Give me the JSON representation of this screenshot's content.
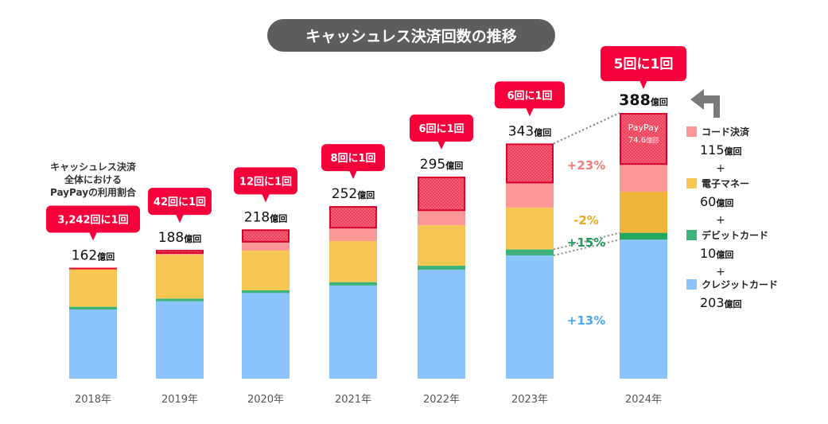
{
  "chart_data": {
    "type": "bar",
    "stacked": true,
    "title": "キャッシュレス決済回数の推移",
    "categories": [
      "2018年",
      "2019年",
      "2020年",
      "2021年",
      "2022年",
      "2023年",
      "2024年"
    ],
    "unit": "億回",
    "series": [
      {
        "name": "クレジットカード",
        "key": "credit",
        "color": "#8ac4fb",
        "values": [
          101,
          113,
          125,
          136,
          159,
          180,
          203
        ]
      },
      {
        "name": "デビットカード",
        "key": "debit",
        "color": "#3db37a",
        "values": [
          4,
          4,
          4,
          5,
          6,
          8.7,
          10
        ]
      },
      {
        "name": "電子マネー",
        "key": "emoney",
        "color": "#f8c653",
        "values": [
          56,
          64,
          58,
          60,
          59,
          61.2,
          60
        ]
      },
      {
        "name": "コード決済",
        "key": "code",
        "color": "#fb9797",
        "values": [
          1,
          7,
          31,
          51,
          71,
          93.5,
          115
        ]
      }
    ],
    "paypay_values": [
      0.05,
      4.5,
      18,
      31.5,
      49,
      57,
      74.6
    ],
    "paypay_color": "#ec3a55",
    "totals": [
      "162",
      "188",
      "218",
      "252",
      "295",
      "343",
      "388"
    ],
    "ratios": [
      "3,242回に1回",
      "42回に1回",
      "12回に1回",
      "8回に1回",
      "6回に1回",
      "6回に1回",
      "5回に1回"
    ],
    "ratio_caption": [
      "キャッシュレス決済",
      "全体における",
      "PayPayの利用割合"
    ],
    "paypay_label": "PayPay",
    "paypay_2024_value": "74.6",
    "growth": [
      {
        "label": "+23%",
        "color": "#f47c7c"
      },
      {
        "label": "-2%",
        "color": "#e9a820"
      },
      {
        "label": "+15%",
        "color": "#1f9a57"
      },
      {
        "label": "+13%",
        "color": "#4aa8f4"
      }
    ],
    "legend": [
      {
        "name": "コード決済",
        "value": "115",
        "color": "#fb9797"
      },
      {
        "name": "電子マネー",
        "value": "60",
        "color": "#f8c653"
      },
      {
        "name": "デビットカード",
        "value": "10",
        "color": "#3db37a"
      },
      {
        "name": "クレジットカード",
        "value": "203",
        "color": "#8ac4fb"
      }
    ],
    "plus_sign": "+",
    "ylim": [
      0,
      400
    ],
    "grid": false,
    "legend_position": "right"
  }
}
